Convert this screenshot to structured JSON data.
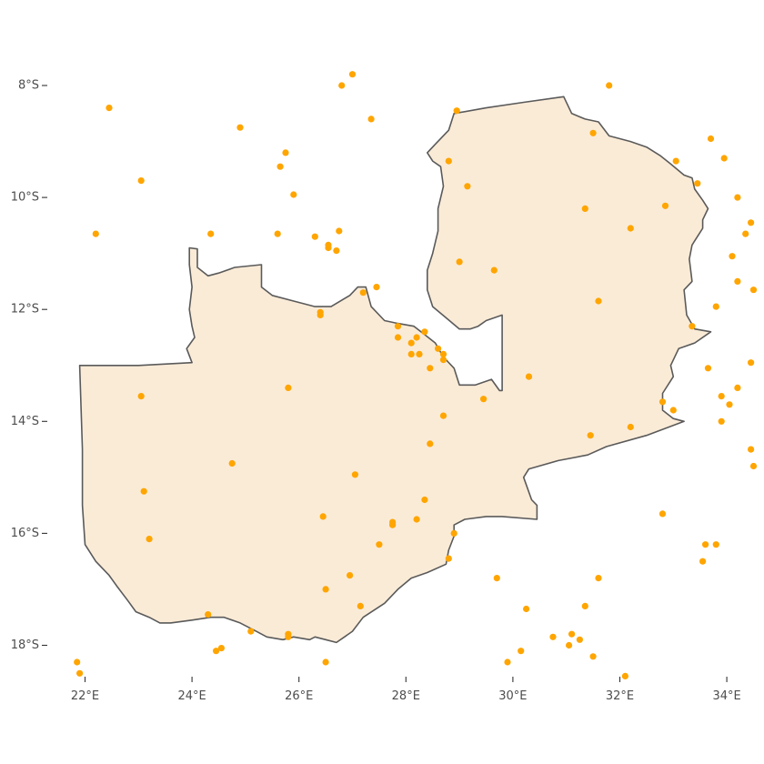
{
  "chart_data": {
    "type": "scatter",
    "subtype": "map-points",
    "title": "",
    "xlabel": "",
    "ylabel": "",
    "xlim": [
      21.8,
      34.5
    ],
    "ylim": [
      -18.5,
      -7.8
    ],
    "x_ticks": [
      22,
      24,
      26,
      28,
      30,
      32,
      34
    ],
    "y_ticks": [
      -8,
      -10,
      -12,
      -14,
      -16,
      -18
    ],
    "x_tick_labels": [
      "22°E",
      "24°E",
      "26°E",
      "28°E",
      "30°E",
      "32°E",
      "34°E"
    ],
    "y_tick_labels": [
      "8°S",
      "10°S",
      "12°S",
      "14°S",
      "16°S",
      "18°S"
    ],
    "grid": false,
    "legend": "none",
    "colors": {
      "country_fill": "#faebd7",
      "country_stroke": "#5a5a5a",
      "points": "#ffa500"
    },
    "country_outline": [
      [
        21.9,
        -13.0
      ],
      [
        23.0,
        -13.0
      ],
      [
        24.0,
        -12.95
      ],
      [
        23.9,
        -12.7
      ],
      [
        24.05,
        -12.5
      ],
      [
        24.0,
        -12.3
      ],
      [
        23.95,
        -12.0
      ],
      [
        24.0,
        -11.6
      ],
      [
        23.95,
        -11.2
      ],
      [
        23.95,
        -10.9
      ],
      [
        24.1,
        -10.92
      ],
      [
        24.1,
        -11.25
      ],
      [
        24.3,
        -11.4
      ],
      [
        24.5,
        -11.35
      ],
      [
        24.8,
        -11.25
      ],
      [
        25.3,
        -11.2
      ],
      [
        25.3,
        -11.6
      ],
      [
        25.5,
        -11.75
      ],
      [
        25.9,
        -11.85
      ],
      [
        26.3,
        -11.95
      ],
      [
        26.6,
        -11.95
      ],
      [
        26.95,
        -11.75
      ],
      [
        27.1,
        -11.6
      ],
      [
        27.25,
        -11.6
      ],
      [
        27.35,
        -11.95
      ],
      [
        27.6,
        -12.2
      ],
      [
        27.85,
        -12.25
      ],
      [
        28.15,
        -12.3
      ],
      [
        28.35,
        -12.45
      ],
      [
        28.55,
        -12.6
      ],
      [
        28.7,
        -12.85
      ],
      [
        28.9,
        -13.05
      ],
      [
        29.0,
        -13.35
      ],
      [
        29.3,
        -13.35
      ],
      [
        29.6,
        -13.25
      ],
      [
        29.75,
        -13.45
      ],
      [
        29.8,
        -13.45
      ],
      [
        29.8,
        -12.1
      ],
      [
        29.5,
        -12.2
      ],
      [
        29.35,
        -12.3
      ],
      [
        29.2,
        -12.35
      ],
      [
        29.0,
        -12.35
      ],
      [
        28.75,
        -12.15
      ],
      [
        28.5,
        -11.95
      ],
      [
        28.4,
        -11.65
      ],
      [
        28.4,
        -11.3
      ],
      [
        28.5,
        -11.0
      ],
      [
        28.6,
        -10.6
      ],
      [
        28.6,
        -10.2
      ],
      [
        28.7,
        -9.8
      ],
      [
        28.65,
        -9.45
      ],
      [
        28.5,
        -9.35
      ],
      [
        28.4,
        -9.2
      ],
      [
        28.55,
        -9.05
      ],
      [
        28.8,
        -8.8
      ],
      [
        28.9,
        -8.5
      ],
      [
        29.5,
        -8.4
      ],
      [
        30.2,
        -8.3
      ],
      [
        30.95,
        -8.2
      ],
      [
        31.1,
        -8.5
      ],
      [
        31.35,
        -8.6
      ],
      [
        31.6,
        -8.65
      ],
      [
        31.8,
        -8.9
      ],
      [
        32.2,
        -9.0
      ],
      [
        32.5,
        -9.1
      ],
      [
        32.75,
        -9.25
      ],
      [
        32.95,
        -9.4
      ],
      [
        33.2,
        -9.6
      ],
      [
        33.35,
        -9.65
      ],
      [
        33.4,
        -9.85
      ],
      [
        33.55,
        -10.05
      ],
      [
        33.65,
        -10.2
      ],
      [
        33.55,
        -10.4
      ],
      [
        33.55,
        -10.55
      ],
      [
        33.35,
        -10.85
      ],
      [
        33.3,
        -11.1
      ],
      [
        33.35,
        -11.5
      ],
      [
        33.2,
        -11.65
      ],
      [
        33.25,
        -12.1
      ],
      [
        33.4,
        -12.35
      ],
      [
        33.7,
        -12.4
      ],
      [
        33.4,
        -12.6
      ],
      [
        33.1,
        -12.7
      ],
      [
        32.95,
        -13.0
      ],
      [
        33.0,
        -13.2
      ],
      [
        32.8,
        -13.5
      ],
      [
        32.8,
        -13.8
      ],
      [
        33.0,
        -13.95
      ],
      [
        33.2,
        -14.0
      ],
      [
        32.5,
        -14.25
      ],
      [
        31.75,
        -14.45
      ],
      [
        31.4,
        -14.6
      ],
      [
        30.85,
        -14.7
      ],
      [
        30.3,
        -14.85
      ],
      [
        30.2,
        -15.0
      ],
      [
        30.35,
        -15.4
      ],
      [
        30.45,
        -15.5
      ],
      [
        30.45,
        -15.75
      ],
      [
        29.8,
        -15.7
      ],
      [
        29.5,
        -15.7
      ],
      [
        29.1,
        -15.75
      ],
      [
        28.9,
        -15.85
      ],
      [
        28.9,
        -16.05
      ],
      [
        28.8,
        -16.3
      ],
      [
        28.75,
        -16.55
      ],
      [
        28.4,
        -16.7
      ],
      [
        28.1,
        -16.8
      ],
      [
        27.85,
        -17.0
      ],
      [
        27.6,
        -17.25
      ],
      [
        27.2,
        -17.5
      ],
      [
        27.0,
        -17.75
      ],
      [
        26.85,
        -17.85
      ],
      [
        26.7,
        -17.95
      ],
      [
        26.5,
        -17.9
      ],
      [
        26.3,
        -17.85
      ],
      [
        26.2,
        -17.9
      ],
      [
        25.9,
        -17.85
      ],
      [
        25.7,
        -17.9
      ],
      [
        25.4,
        -17.85
      ],
      [
        25.2,
        -17.75
      ],
      [
        24.9,
        -17.6
      ],
      [
        24.6,
        -17.5
      ],
      [
        24.35,
        -17.5
      ],
      [
        24.0,
        -17.55
      ],
      [
        23.6,
        -17.6
      ],
      [
        23.4,
        -17.6
      ],
      [
        23.2,
        -17.5
      ],
      [
        22.95,
        -17.4
      ],
      [
        22.8,
        -17.2
      ],
      [
        22.6,
        -16.95
      ],
      [
        22.45,
        -16.75
      ],
      [
        22.2,
        -16.5
      ],
      [
        22.0,
        -16.2
      ],
      [
        21.95,
        -15.5
      ],
      [
        21.95,
        -14.5
      ],
      [
        21.9,
        -13.0
      ]
    ],
    "points": [
      [
        22.45,
        -8.4
      ],
      [
        23.05,
        -9.7
      ],
      [
        24.9,
        -8.75
      ],
      [
        26.8,
        -8.0
      ],
      [
        27.0,
        -7.8
      ],
      [
        27.35,
        -8.6
      ],
      [
        28.95,
        -8.45
      ],
      [
        31.8,
        -8.0
      ],
      [
        25.75,
        -9.2
      ],
      [
        25.65,
        -9.45
      ],
      [
        25.9,
        -9.95
      ],
      [
        22.2,
        -10.65
      ],
      [
        24.35,
        -10.65
      ],
      [
        25.6,
        -10.65
      ],
      [
        26.3,
        -10.7
      ],
      [
        26.55,
        -10.85
      ],
      [
        26.55,
        -10.9
      ],
      [
        26.7,
        -10.95
      ],
      [
        26.75,
        -10.6
      ],
      [
        28.8,
        -9.35
      ],
      [
        29.15,
        -9.8
      ],
      [
        31.5,
        -8.85
      ],
      [
        33.05,
        -9.35
      ],
      [
        33.7,
        -8.95
      ],
      [
        33.95,
        -9.3
      ],
      [
        31.35,
        -10.2
      ],
      [
        32.2,
        -10.55
      ],
      [
        32.85,
        -10.15
      ],
      [
        33.45,
        -9.75
      ],
      [
        34.2,
        -10.0
      ],
      [
        34.45,
        -10.45
      ],
      [
        34.35,
        -10.65
      ],
      [
        34.1,
        -11.05
      ],
      [
        29.0,
        -11.15
      ],
      [
        29.65,
        -11.3
      ],
      [
        31.6,
        -11.85
      ],
      [
        34.2,
        -11.5
      ],
      [
        34.5,
        -11.65
      ],
      [
        33.8,
        -11.95
      ],
      [
        27.45,
        -11.6
      ],
      [
        27.2,
        -11.7
      ],
      [
        26.4,
        -12.05
      ],
      [
        26.4,
        -12.1
      ],
      [
        27.85,
        -12.3
      ],
      [
        28.35,
        -12.4
      ],
      [
        27.85,
        -12.5
      ],
      [
        28.2,
        -12.5
      ],
      [
        28.1,
        -12.6
      ],
      [
        28.6,
        -12.7
      ],
      [
        28.7,
        -12.8
      ],
      [
        28.1,
        -12.8
      ],
      [
        28.25,
        -12.8
      ],
      [
        28.7,
        -12.9
      ],
      [
        28.45,
        -13.05
      ],
      [
        30.3,
        -13.2
      ],
      [
        33.35,
        -12.3
      ],
      [
        33.65,
        -13.05
      ],
      [
        34.2,
        -13.4
      ],
      [
        33.9,
        -13.55
      ],
      [
        34.05,
        -13.7
      ],
      [
        34.45,
        -12.95
      ],
      [
        23.05,
        -13.55
      ],
      [
        25.8,
        -13.4
      ],
      [
        29.45,
        -13.6
      ],
      [
        28.7,
        -13.9
      ],
      [
        32.8,
        -13.65
      ],
      [
        33.0,
        -13.8
      ],
      [
        33.9,
        -14.0
      ],
      [
        32.2,
        -14.1
      ],
      [
        31.45,
        -14.25
      ],
      [
        28.45,
        -14.4
      ],
      [
        34.45,
        -14.5
      ],
      [
        34.5,
        -14.8
      ],
      [
        24.75,
        -14.75
      ],
      [
        27.05,
        -14.95
      ],
      [
        23.1,
        -15.25
      ],
      [
        28.35,
        -15.4
      ],
      [
        32.8,
        -15.65
      ],
      [
        26.45,
        -15.7
      ],
      [
        27.75,
        -15.8
      ],
      [
        27.75,
        -15.85
      ],
      [
        28.2,
        -15.75
      ],
      [
        23.2,
        -16.1
      ],
      [
        27.5,
        -16.2
      ],
      [
        28.9,
        -16.0
      ],
      [
        28.8,
        -16.45
      ],
      [
        33.6,
        -16.2
      ],
      [
        33.8,
        -16.2
      ],
      [
        33.55,
        -16.5
      ],
      [
        26.5,
        -17.0
      ],
      [
        26.95,
        -16.75
      ],
      [
        29.7,
        -16.8
      ],
      [
        31.6,
        -16.8
      ],
      [
        27.15,
        -17.3
      ],
      [
        30.25,
        -17.35
      ],
      [
        31.35,
        -17.3
      ],
      [
        24.3,
        -17.45
      ],
      [
        25.1,
        -17.75
      ],
      [
        25.8,
        -17.8
      ],
      [
        25.8,
        -17.85
      ],
      [
        30.75,
        -17.85
      ],
      [
        31.1,
        -17.8
      ],
      [
        31.25,
        -17.9
      ],
      [
        31.05,
        -18.0
      ],
      [
        24.55,
        -18.05
      ],
      [
        24.45,
        -18.1
      ],
      [
        30.15,
        -18.1
      ],
      [
        31.5,
        -18.2
      ],
      [
        21.85,
        -18.3
      ],
      [
        26.5,
        -18.3
      ],
      [
        29.9,
        -18.3
      ],
      [
        21.9,
        -18.5
      ],
      [
        32.1,
        -18.55
      ]
    ]
  }
}
